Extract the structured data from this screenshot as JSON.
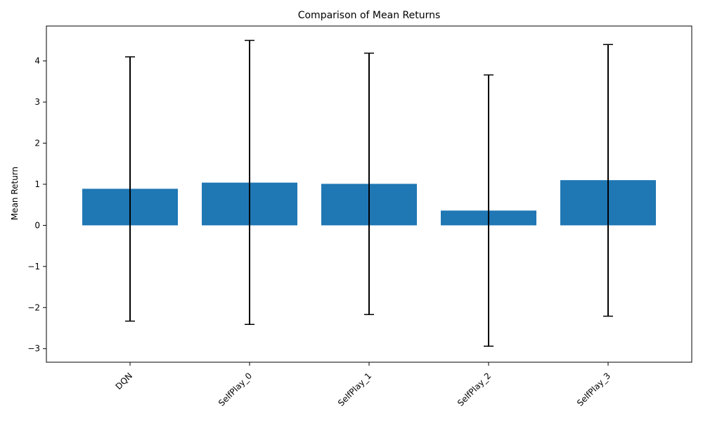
{
  "chart_data": {
    "type": "bar",
    "title": "Comparison of Mean Returns",
    "xlabel": "",
    "ylabel": "Mean Return",
    "categories": [
      "DQN",
      "SelfPlay_0",
      "SelfPlay_1",
      "SelfPlay_2",
      "SelfPlay_3"
    ],
    "values": [
      0.89,
      1.04,
      1.01,
      0.36,
      1.1
    ],
    "error_upper": [
      4.1,
      4.5,
      4.19,
      3.66,
      4.4
    ],
    "error_lower": [
      -2.33,
      -2.41,
      -2.17,
      -2.94,
      -2.21
    ],
    "ylim": [
      -3.33,
      4.85
    ],
    "yticks": [
      -3,
      -2,
      -1,
      0,
      1,
      2,
      3,
      4
    ],
    "ytick_labels": [
      "−3",
      "−2",
      "−1",
      "0",
      "1",
      "2",
      "3",
      "4"
    ],
    "grid": false,
    "colors": {
      "bar": "#1f77b4",
      "error_bar": "#000000",
      "axis": "#000000"
    }
  }
}
